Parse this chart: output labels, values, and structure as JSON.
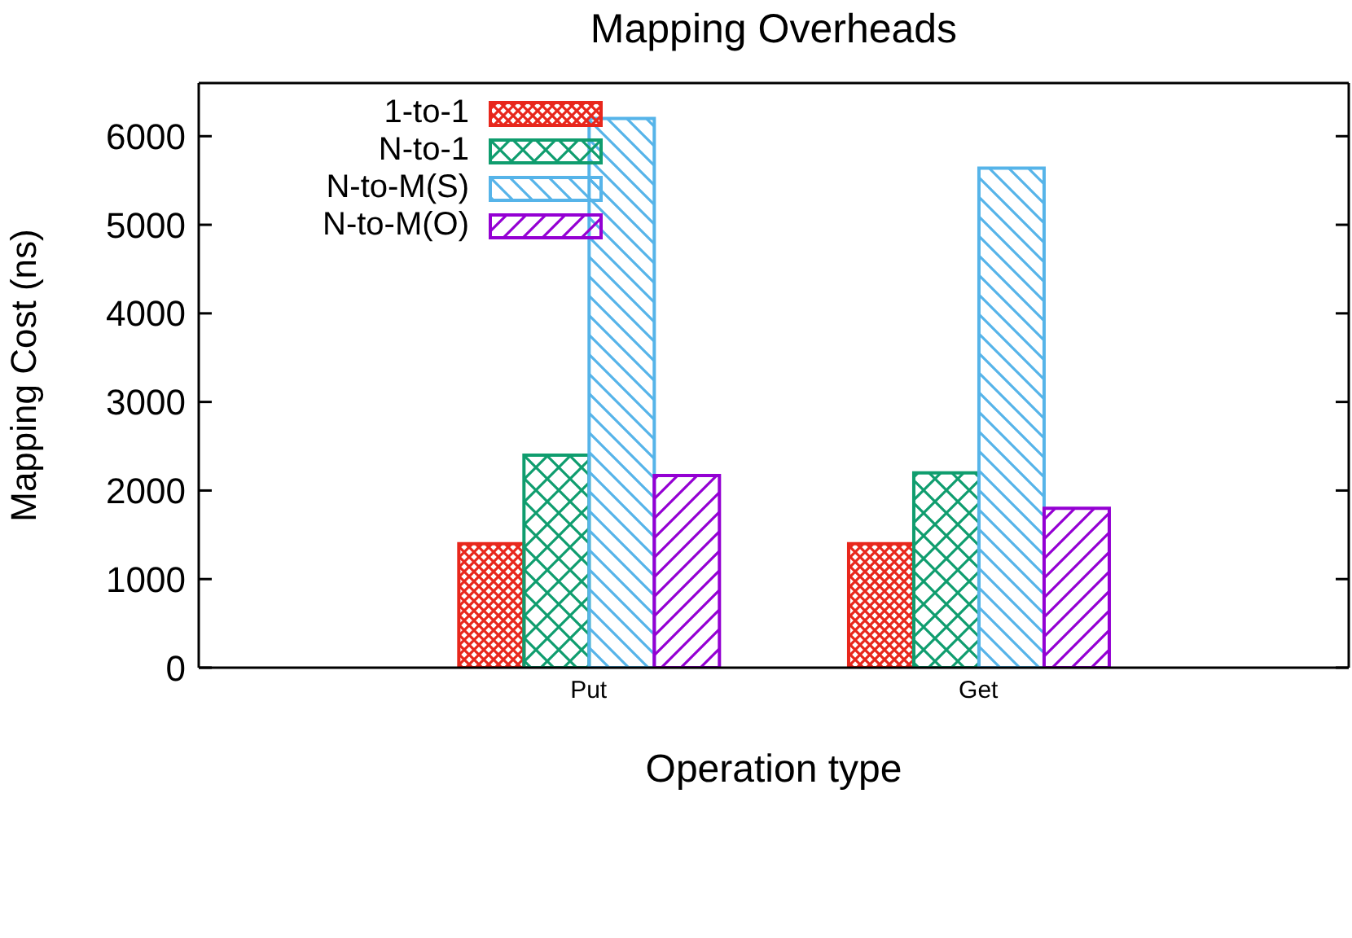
{
  "chart_data": {
    "type": "bar",
    "title": "Mapping Overheads",
    "xlabel": "Operation type",
    "ylabel": "Mapping Cost (ns)",
    "categories": [
      "Put",
      "Get"
    ],
    "series": [
      {
        "name": "1-to-1",
        "color": "#e8271c",
        "values": [
          1400,
          1400
        ]
      },
      {
        "name": "N-to-1",
        "color": "#0f9d6e",
        "values": [
          2400,
          2200
        ]
      },
      {
        "name": "N-to-M(S)",
        "color": "#56b4e9",
        "values": [
          6200,
          5640
        ]
      },
      {
        "name": "N-to-M(O)",
        "color": "#9400d3",
        "values": [
          2170,
          1800
        ]
      }
    ],
    "ylim": [
      0,
      6600
    ],
    "yticks": [
      0,
      1000,
      2000,
      3000,
      4000,
      5000,
      6000
    ],
    "grid": false,
    "legend": "top left"
  }
}
